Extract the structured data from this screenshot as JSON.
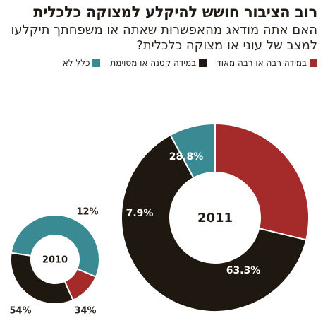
{
  "title": "רוב הציבור חושש להיקלע למצוקה כלכלית",
  "subtitle": "האם אתה מודאג מהאפשרות שאתה או משפחתך תיקלעו למצב של עוני או מצוקה כלכלית?",
  "legend": [
    {
      "label": "במידה רבה או רבה מאוד",
      "color": "#a52a2a"
    },
    {
      "label": "במידה קטנה או מסוימת",
      "color": "#1f1810"
    },
    {
      "label": "כלל לא",
      "color": "#3a8a93"
    }
  ],
  "chart_data": [
    {
      "type": "donut",
      "center_label": "2011",
      "series": [
        {
          "name": "במידה רבה או רבה מאוד",
          "value": 28.8,
          "label": "28.8%",
          "color": "#a52a2a"
        },
        {
          "name": "במידה קטנה או מסוימת",
          "value": 63.3,
          "label": "63.3%",
          "color": "#1f1810"
        },
        {
          "name": "כלל לא",
          "value": 7.9,
          "label": "7.9%",
          "color": "#3a8a93"
        }
      ]
    },
    {
      "type": "donut",
      "center_label": "2010",
      "series": [
        {
          "name": "במידה רבה או רבה מאוד",
          "value": 12,
          "label": "12%",
          "color": "#a52a2a"
        },
        {
          "name": "במידה קטנה או מסוימת",
          "value": 34,
          "label": "34%",
          "color": "#1f1810"
        },
        {
          "name": "כלל לא",
          "value": 54,
          "label": "54%",
          "color": "#3a8a93"
        }
      ]
    }
  ]
}
